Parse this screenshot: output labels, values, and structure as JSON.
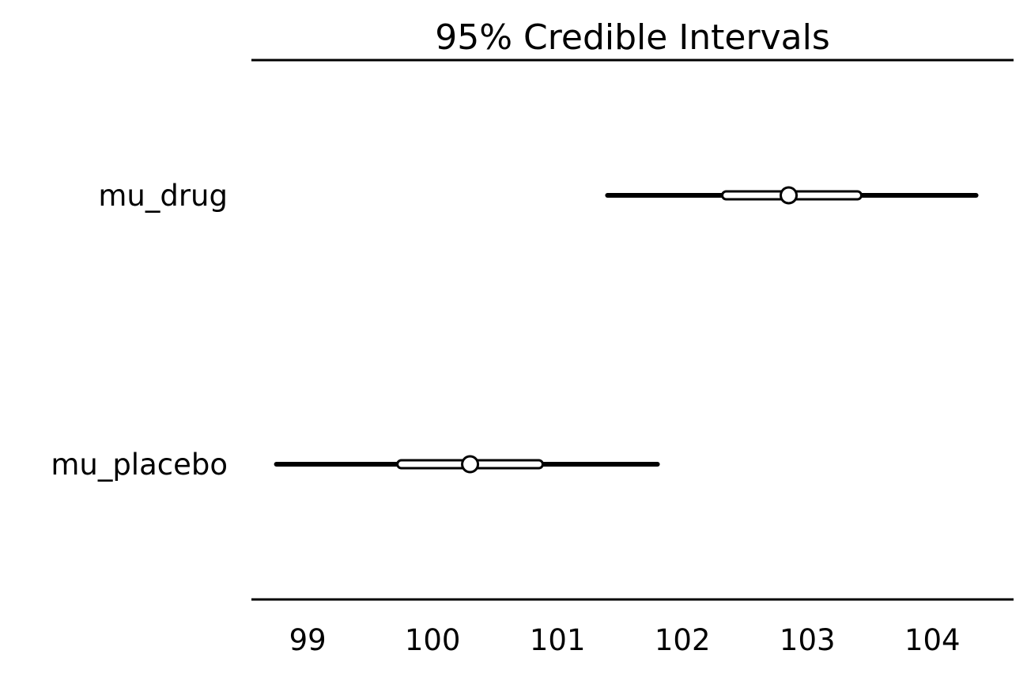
{
  "chart_data": {
    "type": "forest",
    "title": "95% Credible Intervals",
    "xlabel": "",
    "ylabel": "",
    "xlim": [
      98.55,
      104.65
    ],
    "x_ticks": [
      99,
      100,
      101,
      102,
      103,
      104
    ],
    "grid": false,
    "legend": "none",
    "line_color": "#000000",
    "inner_fill_color": "#ffffff",
    "series": [
      {
        "label": "mu_drug",
        "hdi_95": [
          101.4,
          104.35
        ],
        "hdi_50": [
          102.35,
          103.4
        ],
        "median": 102.85
      },
      {
        "label": "mu_placebo",
        "hdi_95": [
          98.75,
          101.8
        ],
        "hdi_50": [
          99.75,
          100.85
        ],
        "median": 100.3
      }
    ]
  }
}
